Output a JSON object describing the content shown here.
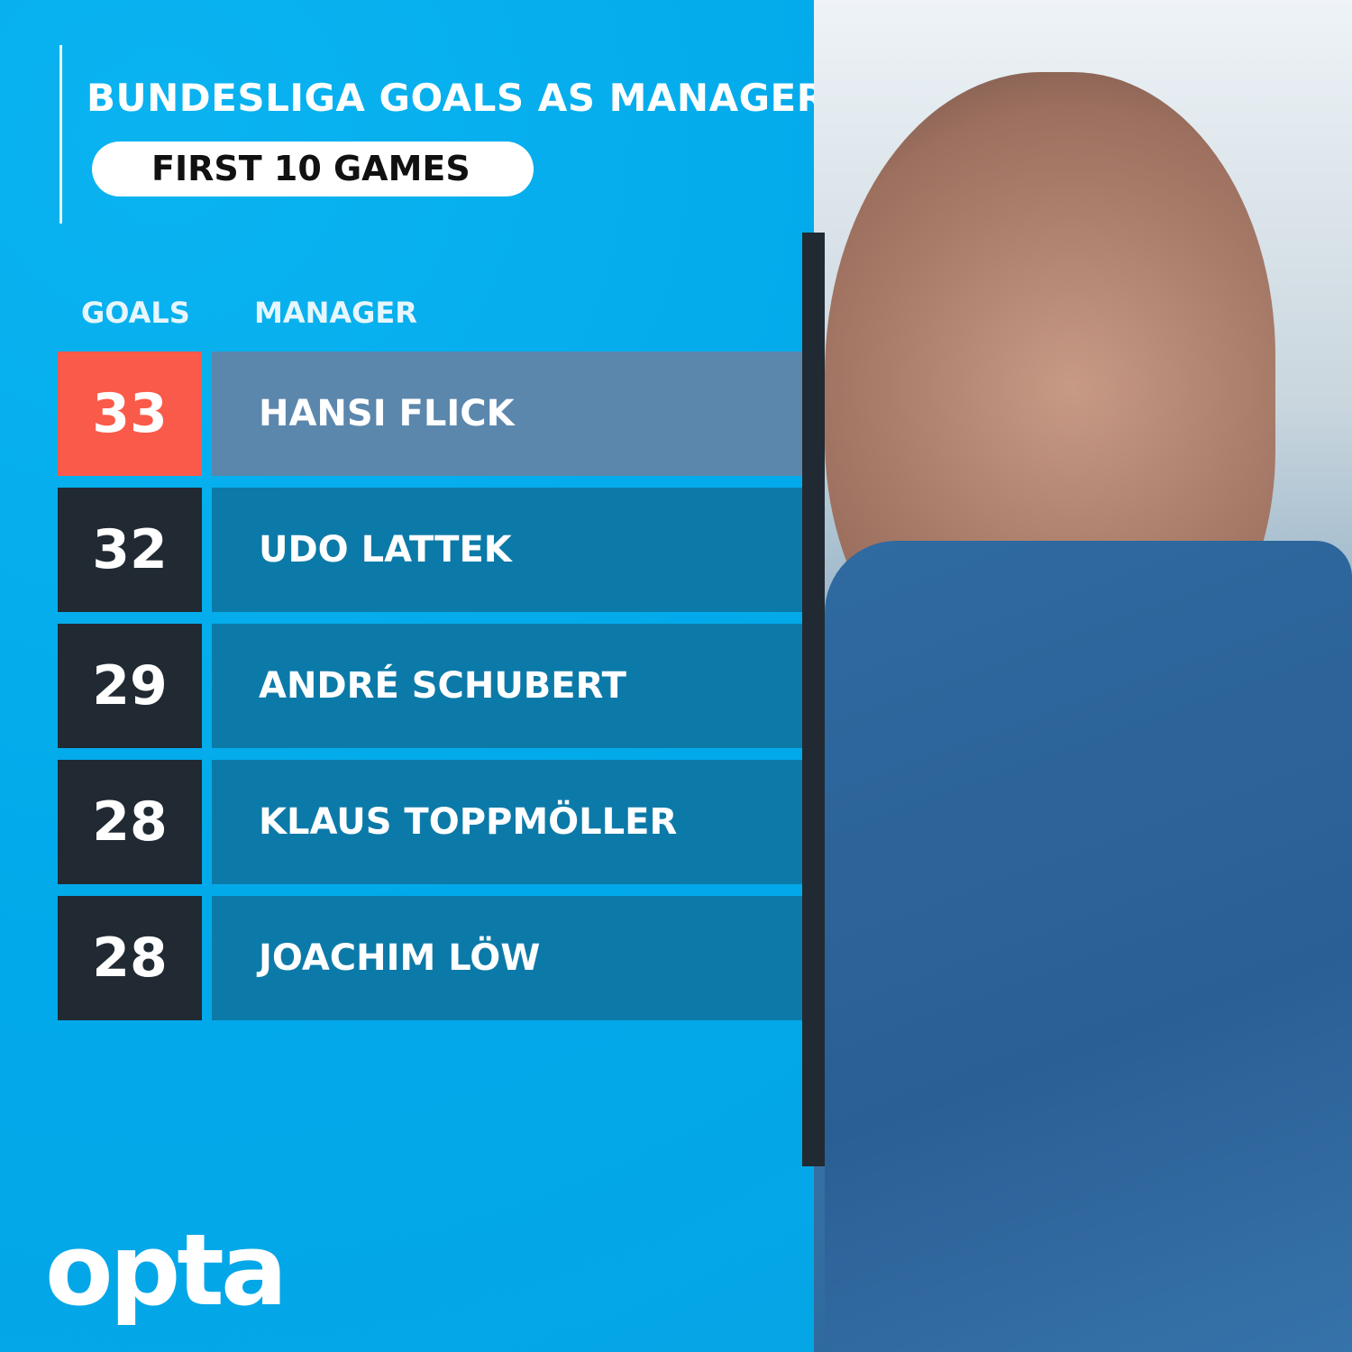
{
  "header": {
    "title": "BUNDESLIGA GOALS AS MANAGER",
    "subtitle": "FIRST 10 GAMES"
  },
  "columns": {
    "goals": "GOALS",
    "manager": "MANAGER"
  },
  "chart_data": {
    "type": "table",
    "title": "BUNDESLIGA GOALS AS MANAGER",
    "subtitle": "FIRST 10 GAMES",
    "columns": [
      "GOALS",
      "MANAGER"
    ],
    "rows": [
      {
        "goals": "33",
        "manager": "HANSI FLICK"
      },
      {
        "goals": "32",
        "manager": "UDO LATTEK"
      },
      {
        "goals": "29",
        "manager": "ANDRÉ SCHUBERT"
      },
      {
        "goals": "28",
        "manager": "KLAUS TOPPMÖLLER"
      },
      {
        "goals": "28",
        "manager": "JOACHIM LÖW"
      }
    ]
  },
  "colors": {
    "background": "#03aeef",
    "highlight_goals": "#fa5a4a",
    "highlight_name": "#5b87ad",
    "goals_cell": "#212a33",
    "name_cell": "#0c7aa8"
  },
  "brand": {
    "logo": "opta"
  }
}
